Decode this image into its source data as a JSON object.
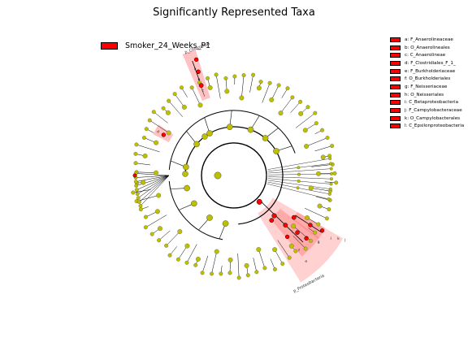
{
  "title": "Significantly Represented Taxa",
  "main_legend": {
    "label": "Smoker_24_Weeks_P1",
    "color": "#ff0000"
  },
  "clade_legend": [
    "a: F_Anaerolineaceae",
    "b: O_Anaerolineales",
    "c: C_Anaerolineae",
    "d: F_Clostridiales_F_1_",
    "e: F_Burkholderiaceae",
    "f: O_Burkholderiales",
    "g: F_Neisseriaceae",
    "h: O_Neisseriales",
    "i: C_Betaproteobacteria",
    "j: F_Campylobacteraceae",
    "k: O_Campylobacterales",
    "l: C_Epsilonproteobacteria"
  ],
  "arc_labels": {
    "top_phylum": "p_Chloroflexi",
    "bottom_phylum": "p_Proteobacteria"
  },
  "colors": {
    "node": "#bdbf00",
    "significant": "#ff0000",
    "highlight": "#ff9999"
  }
}
